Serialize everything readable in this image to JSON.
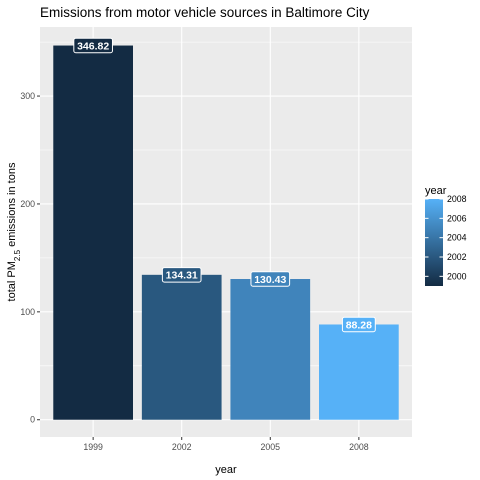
{
  "chart_data": {
    "type": "bar",
    "title": "Emissions from motor vehicle sources in Baltimore City",
    "xlabel": "year",
    "ylabel": {
      "prefix": "total PM",
      "subscript": "2.5",
      "suffix": " emissions in tons"
    },
    "categories": [
      "1999",
      "2002",
      "2005",
      "2008"
    ],
    "values": [
      346.82,
      134.31,
      130.43,
      88.28
    ],
    "data_labels": [
      "346.82",
      "134.31",
      "130.43",
      "88.28"
    ],
    "ylim": [
      -16,
      364
    ],
    "yticks": [
      0,
      100,
      200,
      300
    ],
    "ytick_labels": [
      "0",
      "100",
      "200",
      "300"
    ],
    "grid": true,
    "legend": {
      "title": "year",
      "position": "right",
      "range": [
        1999,
        2008
      ],
      "ticks": [
        2000,
        2002,
        2004,
        2006,
        2008
      ],
      "tick_labels": [
        "2000",
        "2002",
        "2004",
        "2006",
        "2008"
      ],
      "low_color": "#132B43",
      "high_color": "#56B1F7"
    },
    "colors": {
      "panel": "#EBEBEB",
      "grid_major": "#FFFFFF",
      "tick": "#333333"
    }
  }
}
